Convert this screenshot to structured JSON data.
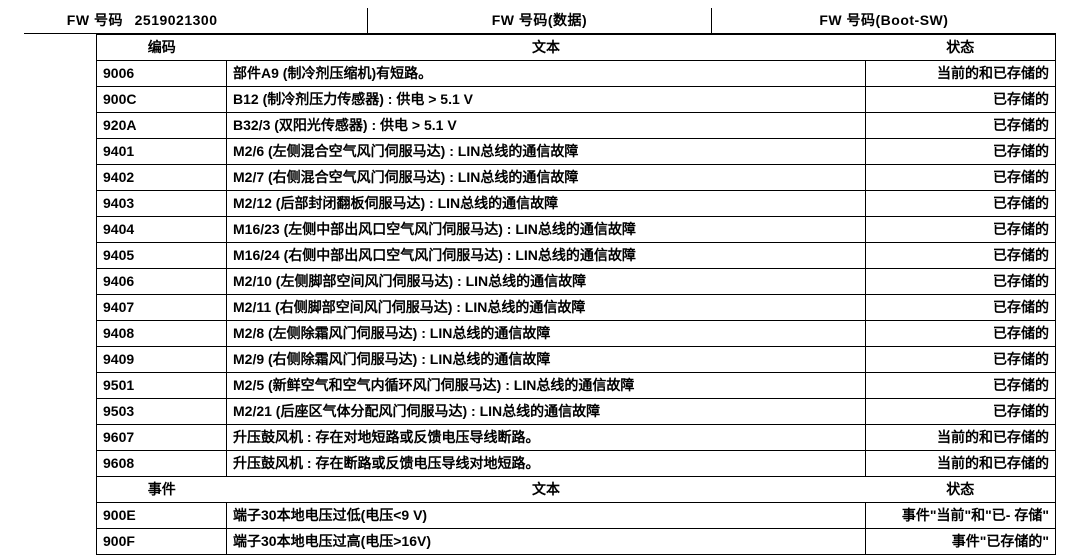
{
  "fw": {
    "label": "FW 号码",
    "value": "2519021300",
    "data_label": "FW 号码(数据)",
    "boot_label": "FW 号码(Boot-SW)"
  },
  "section1": {
    "col_code": "编码",
    "col_text": "文本",
    "col_status": "状态",
    "rows": [
      {
        "code": "9006",
        "text": "部件A9 (制冷剂压缩机)有短路。",
        "status": "当前的和已存储的"
      },
      {
        "code": "900C",
        "text": "B12 (制冷剂压力传感器) : 供电 > 5.1 V",
        "status": "已存储的"
      },
      {
        "code": "920A",
        "text": "B32/3 (双阳光传感器) : 供电 > 5.1 V",
        "status": "已存储的"
      },
      {
        "code": "9401",
        "text": "M2/6 (左侧混合空气风门伺服马达) : LIN总线的通信故障",
        "status": "已存储的"
      },
      {
        "code": "9402",
        "text": "M2/7 (右侧混合空气风门伺服马达) : LIN总线的通信故障",
        "status": "已存储的"
      },
      {
        "code": "9403",
        "text": "M2/12 (后部封闭翻板伺服马达) : LIN总线的通信故障",
        "status": "已存储的"
      },
      {
        "code": "9404",
        "text": "M16/23 (左侧中部出风口空气风门伺服马达) : LIN总线的通信故障",
        "status": "已存储的"
      },
      {
        "code": "9405",
        "text": "M16/24 (右侧中部出风口空气风门伺服马达) : LIN总线的通信故障",
        "status": "已存储的"
      },
      {
        "code": "9406",
        "text": "M2/10 (左侧脚部空间风门伺服马达) : LIN总线的通信故障",
        "status": "已存储的"
      },
      {
        "code": "9407",
        "text": "M2/11 (右侧脚部空间风门伺服马达) : LIN总线的通信故障",
        "status": "已存储的"
      },
      {
        "code": "9408",
        "text": "M2/8 (左侧除霜风门伺服马达) : LIN总线的通信故障",
        "status": "已存储的"
      },
      {
        "code": "9409",
        "text": "M2/9 (右侧除霜风门伺服马达) : LIN总线的通信故障",
        "status": "已存储的"
      },
      {
        "code": "9501",
        "text": "M2/5 (新鲜空气和空气内循环风门伺服马达) : LIN总线的通信故障",
        "status": "已存储的"
      },
      {
        "code": "9503",
        "text": "M2/21 (后座区气体分配风门伺服马达) : LIN总线的通信故障",
        "status": "已存储的"
      },
      {
        "code": "9607",
        "text": "升压鼓风机 : 存在对地短路或反馈电压导线断路。",
        "status": "当前的和已存储的"
      },
      {
        "code": "9608",
        "text": "升压鼓风机 : 存在断路或反馈电压导线对地短路。",
        "status": "当前的和已存储的"
      }
    ]
  },
  "section2": {
    "col_code": "事件",
    "col_text": "文本",
    "col_status": "状态",
    "rows": [
      {
        "code": "900E",
        "text": "端子30本地电压过低(电压<9 V)",
        "status": "事件\"当前\"和\"已- 存储\""
      },
      {
        "code": "900F",
        "text": "端子30本地电压过高(电压>16V)",
        "status": "事件\"已存储的\""
      }
    ]
  }
}
